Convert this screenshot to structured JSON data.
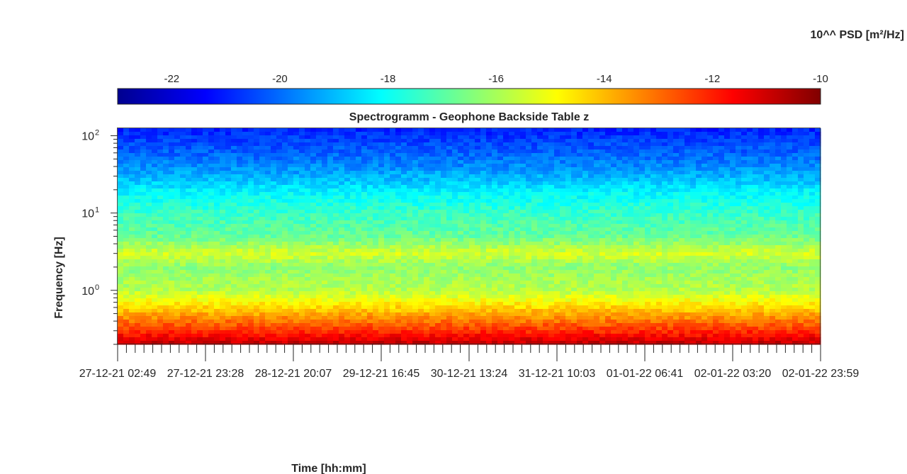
{
  "chart_data": {
    "type": "heatmap",
    "title": "Spectrogramm - Geophone Backside Table z",
    "xlabel": "Time [hh:mm]",
    "ylabel": "Frequency [Hz]",
    "colorbar": {
      "label": "10^^ PSD [m²/Hz]",
      "range": [
        -23,
        -10
      ],
      "ticks": [
        "-22",
        "-20",
        "-18",
        "-16",
        "-14",
        "-12",
        "-10"
      ],
      "colormap": "jet",
      "placement": "top"
    },
    "y_scale": "log",
    "ylim": [
      0.2,
      125
    ],
    "y_ticks": [
      {
        "value": 1,
        "base": "10",
        "exp": "0"
      },
      {
        "value": 10,
        "base": "10",
        "exp": "1"
      },
      {
        "value": 100,
        "base": "10",
        "exp": "2"
      }
    ],
    "xlim": [
      "27-12-21 02:49",
      "02-01-22 23:59"
    ],
    "x_tick_labels": [
      "27-12-21 02:49",
      "27-12-21 23:28",
      "28-12-21 20:07",
      "29-12-21 16:45",
      "30-12-21 13:24",
      "31-12-21 10:03",
      "01-01-22 06:41",
      "02-01-22 03:20",
      "02-01-22 23:59"
    ],
    "psd_profile": [
      {
        "freq_hz": 0.2,
        "log_psd": -10.8
      },
      {
        "freq_hz": 0.3,
        "log_psd": -12.2
      },
      {
        "freq_hz": 0.5,
        "log_psd": -13.8
      },
      {
        "freq_hz": 0.8,
        "log_psd": -15.2
      },
      {
        "freq_hz": 1,
        "log_psd": -15.8
      },
      {
        "freq_hz": 2,
        "log_psd": -16.3
      },
      {
        "freq_hz": 3,
        "log_psd": -15.4
      },
      {
        "freq_hz": 5,
        "log_psd": -16.8
      },
      {
        "freq_hz": 10,
        "log_psd": -17.4
      },
      {
        "freq_hz": 20,
        "log_psd": -18.3
      },
      {
        "freq_hz": 25,
        "log_psd": -18.8
      },
      {
        "freq_hz": 40,
        "log_psd": -19.6
      },
      {
        "freq_hz": 70,
        "log_psd": -20.3
      },
      {
        "freq_hz": 125,
        "log_psd": -21.0
      }
    ],
    "grid": false
  }
}
